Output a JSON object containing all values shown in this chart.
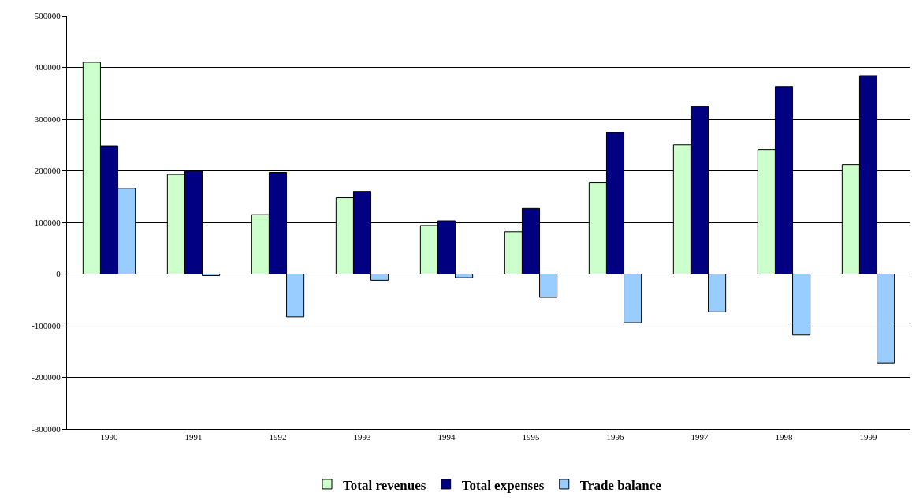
{
  "chart_data": {
    "type": "bar",
    "categories": [
      "1990",
      "1991",
      "1992",
      "1993",
      "1994",
      "1995",
      "1996",
      "1997",
      "1998",
      "1999"
    ],
    "series": [
      {
        "name": "Total revenues",
        "color": "#ccffcc",
        "values": [
          410000,
          193000,
          115000,
          148000,
          94000,
          82000,
          177000,
          250000,
          241000,
          212000
        ]
      },
      {
        "name": "Total expenses",
        "color": "#000080",
        "values": [
          248000,
          200000,
          197000,
          160000,
          103000,
          127000,
          274000,
          324000,
          363000,
          384000
        ]
      },
      {
        "name": "Trade balance",
        "color": "#99ccff",
        "values": [
          166000,
          -3000,
          -83000,
          -12000,
          -7000,
          -45000,
          -94000,
          -73000,
          -118000,
          -172000
        ]
      }
    ],
    "ylim": [
      -300000,
      500000
    ],
    "yticks": [
      -300000,
      -200000,
      -100000,
      0,
      100000,
      200000,
      300000,
      400000,
      500000
    ],
    "grid": "y",
    "legend": "bottom"
  }
}
